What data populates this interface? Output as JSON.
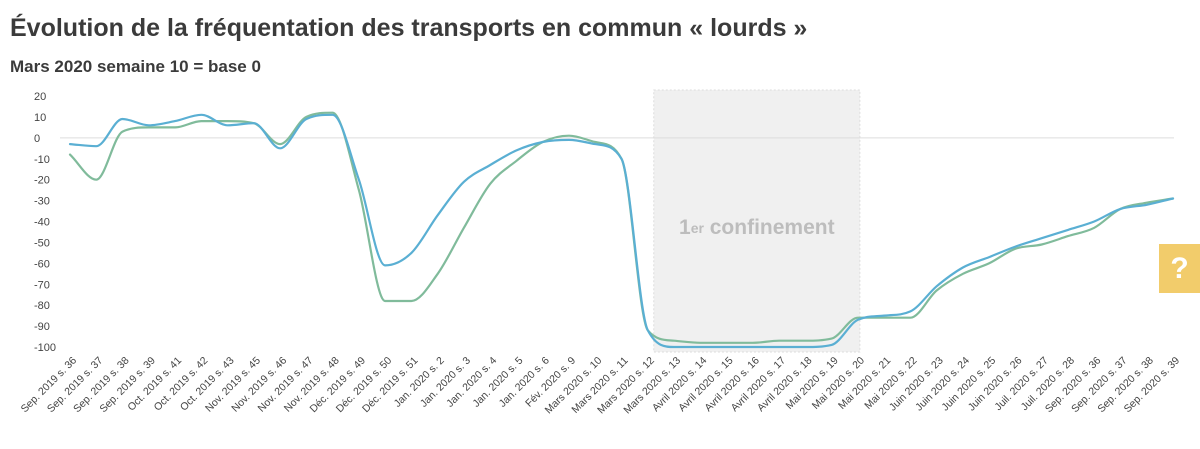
{
  "header": {
    "title": "Évolution de la fréquentation des transports en commun « lourds »",
    "subtitle": "Mars 2020 semaine 10 = base 0"
  },
  "help_button": {
    "label": "?"
  },
  "chart_data": {
    "type": "line",
    "title": "Évolution de la fréquentation des transports en commun « lourds »",
    "subtitle": "Mars 2020 semaine 10 = base 0",
    "xlabel": "",
    "ylabel": "",
    "ylim": [
      -100,
      20
    ],
    "yticks": [
      20,
      10,
      0,
      -10,
      -20,
      -30,
      -40,
      -50,
      -60,
      -70,
      -80,
      -90,
      -100
    ],
    "grid": false,
    "zero_line": true,
    "categories": [
      "Sep. 2019 s. 36",
      "Sep. 2019 s. 37",
      "Sep. 2019 s. 38",
      "Sep. 2019 s. 39",
      "Oct. 2019 s. 41",
      "Oct. 2019 s. 42",
      "Oct. 2019 s. 43",
      "Nov. 2019 s. 45",
      "Nov. 2019 s. 46",
      "Nov. 2019 s. 47",
      "Nov. 2019 s. 48",
      "Déc. 2019 s. 49",
      "Déc. 2019 s. 50",
      "Déc. 2019 s. 51",
      "Jan. 2020 s. 2",
      "Jan. 2020 s. 3",
      "Jan. 2020 s. 4",
      "Jan. 2020 s. 5",
      "Jan. 2020 s. 6",
      "Fév. 2020 s. 9",
      "Mars 2020 s. 10",
      "Mars 2020 s. 11",
      "Mars 2020 s. 12",
      "Mars 2020 s. 13",
      "Avril 2020 s. 14",
      "Avril 2020 s. 15",
      "Avril 2020 s. 16",
      "Avril 2020 s. 17",
      "Avril 2020 s. 18",
      "Mai 2020 s. 19",
      "Mai 2020 s. 20",
      "Mai 2020 s. 21",
      "Mai 2020 s. 22",
      "Juin 2020 s. 23",
      "Juin 2020 s. 24",
      "Juin 2020 s. 25",
      "Juin 2020 s. 26",
      "Juil. 2020 s. 27",
      "Juil. 2020 s. 28",
      "Sep. 2020 s. 36",
      "Sep. 2020 s. 37",
      "Sep. 2020 s. 38",
      "Sep. 2020 s. 39"
    ],
    "series": [
      {
        "color": "#5aafd3",
        "values": [
          -3,
          -4,
          9,
          6,
          8,
          11,
          6,
          7,
          -5,
          9,
          11,
          -20,
          -61,
          -55,
          -37,
          -21,
          -13,
          -6,
          -2,
          -1,
          -3,
          -10,
          -92,
          -100,
          -100,
          -100,
          -100,
          -100,
          -100,
          -99,
          -87,
          -85,
          -83,
          -71,
          -62,
          -57,
          -52,
          -48,
          -44,
          -40,
          -34,
          -32,
          -29
        ]
      },
      {
        "color": "#80bb9b",
        "values": [
          -8,
          -20,
          3,
          5,
          5,
          8,
          8,
          7,
          -3,
          10,
          12,
          -25,
          -78,
          -78,
          -65,
          -43,
          -22,
          -11,
          -2,
          1,
          -2,
          -10,
          -92,
          -97,
          -98,
          -98,
          -98,
          -97,
          -97,
          -96,
          -86,
          -86,
          -86,
          -73,
          -65,
          -60,
          -53,
          -51,
          -47,
          -43,
          -34,
          -31,
          -29
        ]
      }
    ],
    "annotations": [
      {
        "type": "band",
        "x_start": "Mars 2020 s. 12",
        "x_end": "Mai 2020 s. 20",
        "label_main": "1",
        "label_sup": "er",
        "label_rest": " confinement"
      }
    ]
  }
}
